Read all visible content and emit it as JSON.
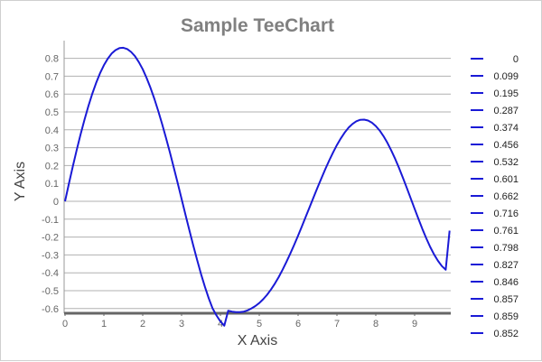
{
  "chart_data": {
    "type": "line",
    "title": "Sample TeeChart",
    "xlabel": "X Axis",
    "ylabel": "Y Axis",
    "xlim": [
      0,
      9.9
    ],
    "ylim": [
      -0.62,
      0.86
    ],
    "x_ticks": [
      "0",
      "1",
      "2",
      "3",
      "4",
      "5",
      "6",
      "7",
      "8",
      "9"
    ],
    "y_ticks": [
      "0.8",
      "0.7",
      "0.6",
      "0.5",
      "0.4",
      "0.3",
      "0.2",
      "0.1",
      "0",
      "-0.1",
      "-0.2",
      "-0.3",
      "-0.4",
      "-0.5",
      "-0.6"
    ],
    "grid": true,
    "legend_position": "right",
    "series_color": "#1a1ad6",
    "series": [
      {
        "x": [
          0,
          0.1,
          0.2,
          0.3,
          0.4,
          0.5,
          0.6,
          0.7,
          0.8,
          0.9,
          1.0,
          1.1,
          1.2,
          1.3,
          1.4,
          1.5,
          1.6,
          1.7,
          1.8,
          1.9,
          2.0,
          2.1,
          2.2,
          2.3,
          2.4,
          2.5,
          2.6,
          2.7,
          2.8,
          2.9,
          3.0,
          3.1,
          3.2,
          3.3,
          3.4,
          3.5,
          3.6,
          3.7,
          3.8,
          3.9,
          4.0,
          4.1,
          4.2,
          4.3,
          4.4,
          4.5,
          4.6,
          4.7,
          4.8,
          4.9,
          5.0,
          5.1,
          5.2,
          5.3,
          5.4,
          5.5,
          5.6,
          5.7,
          5.8,
          5.9,
          6.0,
          6.1,
          6.2,
          6.3,
          6.4,
          6.5,
          6.6,
          6.7,
          6.8,
          6.9,
          7.0,
          7.1,
          7.2,
          7.3,
          7.4,
          7.5,
          7.6,
          7.7,
          7.8,
          7.9,
          8.0,
          8.1,
          8.2,
          8.3,
          8.4,
          8.5,
          8.6,
          8.7,
          8.8,
          8.9,
          9.0,
          9.1,
          9.2,
          9.3,
          9.4,
          9.5,
          9.6,
          9.7,
          9.8,
          9.9
        ],
        "values": [
          0,
          0.099,
          0.195,
          0.287,
          0.374,
          0.456,
          0.532,
          0.601,
          0.662,
          0.716,
          0.761,
          0.798,
          0.827,
          0.846,
          0.857,
          0.859,
          0.852,
          0.836,
          0.812,
          0.779,
          0.739,
          0.69,
          0.635,
          0.573,
          0.505,
          0.432,
          0.354,
          0.273,
          0.188,
          0.102,
          0.014,
          -0.074,
          -0.161,
          -0.246,
          -0.328,
          -0.406,
          -0.478,
          -0.543,
          -0.6,
          -0.639,
          -0.672,
          -0.696,
          -0.612,
          -0.617,
          -0.62,
          -0.62,
          -0.617,
          -0.61,
          -0.599,
          -0.586,
          -0.569,
          -0.548,
          -0.523,
          -0.494,
          -0.461,
          -0.424,
          -0.383,
          -0.339,
          -0.292,
          -0.243,
          -0.192,
          -0.139,
          -0.085,
          -0.031,
          0.023,
          0.077,
          0.129,
          0.18,
          0.228,
          0.273,
          0.315,
          0.352,
          0.385,
          0.412,
          0.433,
          0.448,
          0.456,
          0.457,
          0.452,
          0.44,
          0.421,
          0.396,
          0.364,
          0.327,
          0.284,
          0.237,
          0.186,
          0.131,
          0.074,
          0.016,
          -0.042,
          -0.099,
          -0.155,
          -0.207,
          -0.255,
          -0.297,
          -0.333,
          -0.362,
          -0.383,
          -0.164
        ]
      }
    ],
    "legend_entries": [
      "0",
      "0.099",
      "0.195",
      "0.287",
      "0.374",
      "0.456",
      "0.532",
      "0.601",
      "0.662",
      "0.716",
      "0.761",
      "0.798",
      "0.827",
      "0.846",
      "0.857",
      "0.859",
      "0.852"
    ]
  }
}
